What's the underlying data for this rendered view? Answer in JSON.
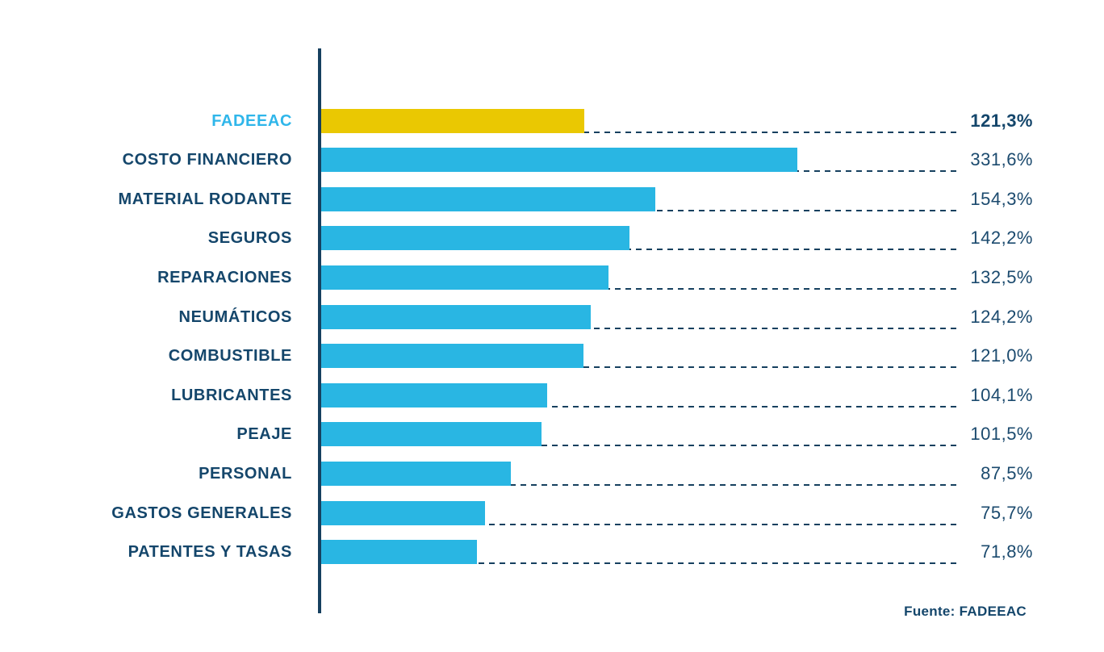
{
  "chart_data": {
    "type": "bar",
    "orientation": "horizontal",
    "title": "",
    "categories": [
      "FADEEAC",
      "COSTO FINANCIERO",
      "MATERIAL RODANTE",
      "SEGUROS",
      "REPARACIONES",
      "NEUMÁTICOS",
      "COMBUSTIBLE",
      "LUBRICANTES",
      "PEAJE",
      "PERSONAL",
      "GASTOS GENERALES",
      "PATENTES Y TASAS"
    ],
    "values": [
      121.3,
      331.6,
      154.3,
      142.2,
      132.5,
      124.2,
      121.0,
      104.1,
      101.5,
      87.5,
      75.7,
      71.8
    ],
    "value_labels": [
      "121,3%",
      "331,6%",
      "154,3%",
      "142,2%",
      "132,5%",
      "124,2%",
      "121,0%",
      "104,1%",
      "101,5%",
      "87,5%",
      "75,7%",
      "71,8%"
    ],
    "highlight_index": 0,
    "legend": null,
    "grid": "dashed-leader-lines",
    "axis_display_max_pct": 295,
    "bar_display_cap_pct": 219.5,
    "colors": {
      "bar_default": "#29b6e3",
      "bar_highlight": "#eac802",
      "navy_text": "#14466b",
      "highlight_label": "#2fb6ea",
      "axis_line": "#16405f"
    }
  },
  "footer": {
    "source": "Fuente: FADEEAC"
  }
}
